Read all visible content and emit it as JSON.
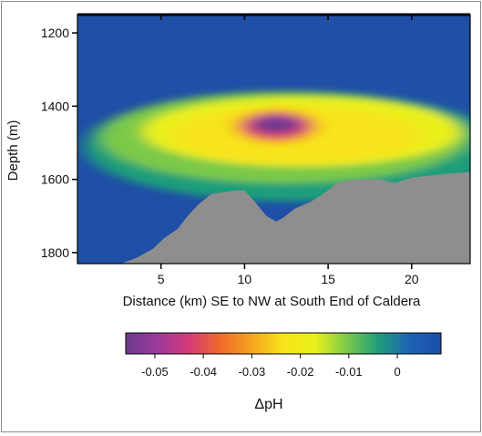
{
  "chart_data": {
    "type": "heatmap",
    "title": "",
    "xlabel": "Distance (km) SE to NW at South End of Caldera",
    "ylabel": "Depth (m)",
    "xlim": [
      0,
      23.5
    ],
    "ylim": [
      1830,
      1150
    ],
    "xticks": [
      5,
      10,
      15,
      20
    ],
    "yticks": [
      1200,
      1400,
      1600,
      1800
    ],
    "x_tick_labels": [
      "5",
      "10",
      "15",
      "20"
    ],
    "y_tick_labels": [
      "1200",
      "1400",
      "1600",
      "1800"
    ],
    "colorbar": {
      "label": "ΔpH",
      "range": [
        -0.056,
        0.009
      ],
      "ticks": [
        -0.05,
        -0.04,
        -0.03,
        -0.02,
        -0.01,
        0
      ],
      "tick_labels": [
        "-0.05",
        "-0.04",
        "-0.03",
        "-0.02",
        "-0.01",
        "0"
      ],
      "colors": [
        "#6d3a8c",
        "#9b3a9c",
        "#d63a78",
        "#ef6a2a",
        "#f6a51e",
        "#f7e41a",
        "#eaf01c",
        "#7cc94a",
        "#1f9e7a",
        "#1d63b4",
        "#1a4fa8"
      ]
    },
    "plume": {
      "center_km": 11.9,
      "center_depth_m": 1455,
      "min_value": -0.055,
      "background_value": 0.005
    },
    "seafloor": {
      "x_km": [
        2.6,
        3.5,
        4.5,
        5.2,
        6.0,
        6.6,
        7.2,
        8.0,
        9.5,
        10.0,
        10.6,
        11.3,
        11.9,
        12.3,
        13.0,
        14.0,
        15.0,
        15.5,
        16.0,
        17.0,
        18.0,
        19.0,
        20.0,
        21.0,
        22.0,
        23.5
      ],
      "depth_m": [
        1830,
        1815,
        1790,
        1760,
        1735,
        1700,
        1670,
        1640,
        1630,
        1630,
        1660,
        1700,
        1715,
        1705,
        1680,
        1660,
        1630,
        1610,
        1605,
        1600,
        1600,
        1610,
        1595,
        1590,
        1585,
        1580
      ]
    }
  }
}
